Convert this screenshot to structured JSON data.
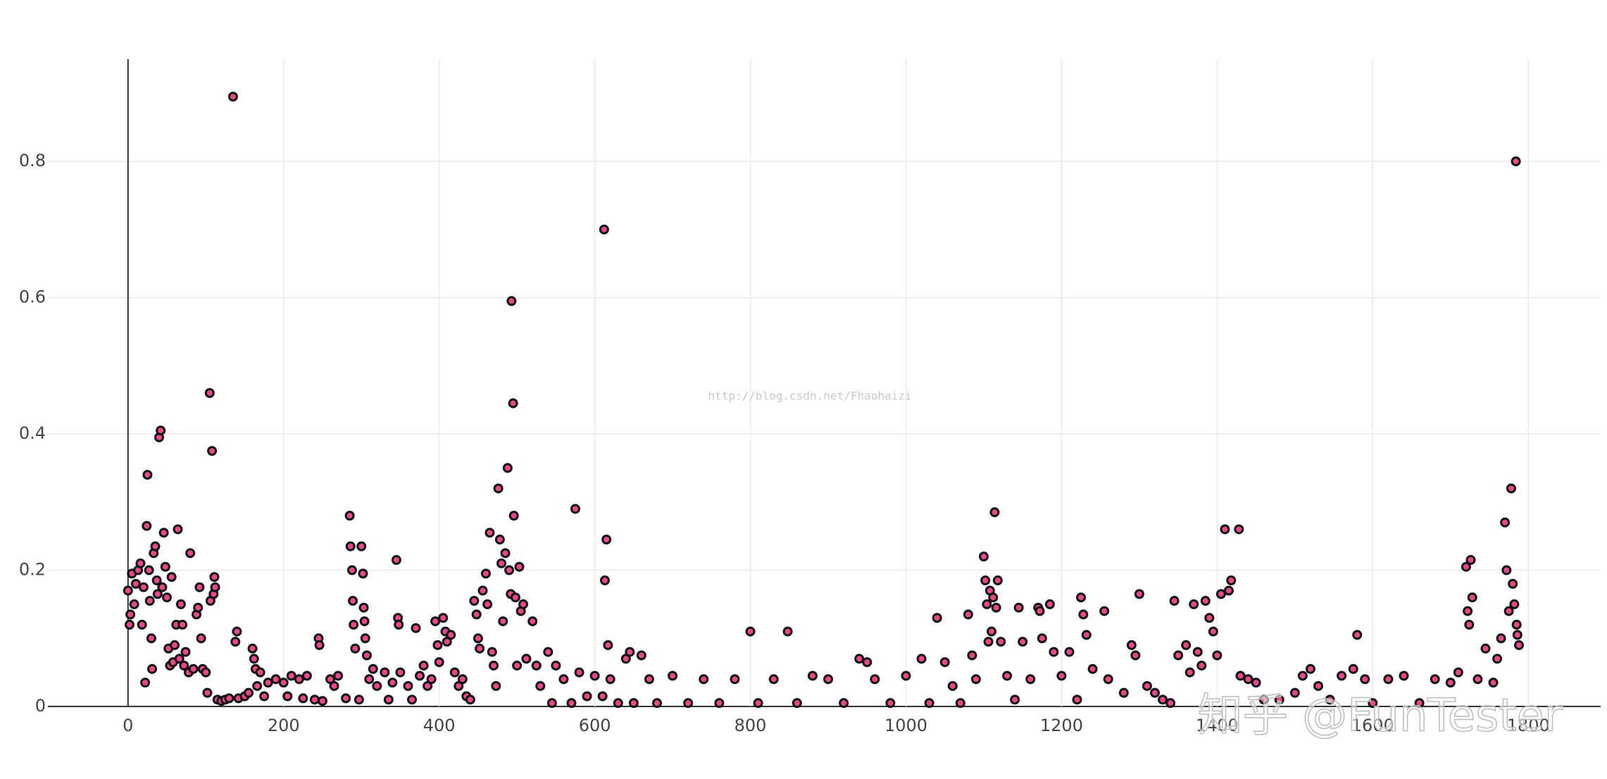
{
  "chart_data": {
    "type": "scatter",
    "annotations": [
      "http://blog.csdn.net/Fhaohaizi",
      "知乎 @FunTester"
    ],
    "color": "#e8478b",
    "edge_color": "#111111",
    "grid": true,
    "xlim": [
      -103,
      1893
    ],
    "ylim": [
      0,
      0.95
    ],
    "xticks": [
      0,
      200,
      400,
      600,
      800,
      1000,
      1200,
      1400,
      1600,
      1800
    ],
    "yticks": [
      0,
      0.2,
      0.4,
      0.6,
      0.8
    ],
    "x": [
      0,
      2,
      3,
      5,
      8,
      10,
      13,
      16,
      18,
      20,
      22,
      24,
      25,
      27,
      28,
      30,
      31,
      33,
      35,
      37,
      38,
      40,
      42,
      44,
      46,
      48,
      50,
      52,
      54,
      56,
      58,
      60,
      62,
      64,
      66,
      68,
      70,
      72,
      74,
      78,
      80,
      84,
      88,
      90,
      92,
      94,
      96,
      100,
      102,
      105,
      106,
      108,
      110,
      111,
      112,
      115,
      120,
      125,
      130,
      135,
      138,
      140,
      142,
      150,
      155,
      160,
      162,
      164,
      166,
      170,
      175,
      180,
      190,
      200,
      205,
      210,
      220,
      225,
      230,
      240,
      245,
      246,
      250,
      260,
      265,
      270,
      280,
      285,
      286,
      288,
      289,
      290,
      292,
      297,
      300,
      302,
      303,
      304,
      305,
      307,
      310,
      315,
      320,
      330,
      335,
      340,
      345,
      347,
      348,
      350,
      360,
      365,
      370,
      375,
      380,
      385,
      390,
      395,
      398,
      400,
      405,
      408,
      410,
      415,
      420,
      425,
      430,
      435,
      440,
      445,
      448,
      450,
      452,
      456,
      460,
      462,
      465,
      468,
      470,
      473,
      476,
      478,
      480,
      482,
      485,
      488,
      490,
      492,
      493,
      495,
      496,
      498,
      500,
      503,
      505,
      508,
      512,
      520,
      525,
      530,
      540,
      545,
      550,
      560,
      570,
      575,
      580,
      590,
      600,
      610,
      612,
      613,
      615,
      617,
      620,
      630,
      640,
      645,
      650,
      660,
      670,
      680,
      700,
      720,
      740,
      760,
      780,
      800,
      810,
      830,
      848,
      860,
      880,
      900,
      920,
      940,
      950,
      960,
      980,
      1000,
      1020,
      1030,
      1040,
      1050,
      1060,
      1070,
      1080,
      1085,
      1090,
      1100,
      1102,
      1104,
      1106,
      1108,
      1110,
      1112,
      1114,
      1116,
      1118,
      1122,
      1130,
      1140,
      1145,
      1150,
      1160,
      1170,
      1172,
      1175,
      1185,
      1190,
      1200,
      1210,
      1220,
      1225,
      1228,
      1232,
      1240,
      1255,
      1260,
      1280,
      1290,
      1295,
      1300,
      1310,
      1320,
      1330,
      1340,
      1345,
      1350,
      1360,
      1365,
      1370,
      1375,
      1380,
      1385,
      1390,
      1395,
      1400,
      1405,
      1410,
      1415,
      1418,
      1428,
      1430,
      1440,
      1450,
      1460,
      1480,
      1500,
      1510,
      1520,
      1530,
      1545,
      1560,
      1575,
      1580,
      1590,
      1600,
      1620,
      1640,
      1660,
      1680,
      1700,
      1710,
      1720,
      1722,
      1724,
      1726,
      1728,
      1735,
      1745,
      1755,
      1760,
      1765,
      1770,
      1772,
      1775,
      1778,
      1780,
      1782,
      1784,
      1785,
      1786,
      1788
    ],
    "values": [
      0.17,
      0.12,
      0.135,
      0.195,
      0.15,
      0.18,
      0.2,
      0.21,
      0.12,
      0.175,
      0.035,
      0.265,
      0.34,
      0.2,
      0.155,
      0.1,
      0.055,
      0.225,
      0.235,
      0.185,
      0.165,
      0.395,
      0.405,
      0.175,
      0.255,
      0.205,
      0.16,
      0.085,
      0.06,
      0.19,
      0.065,
      0.09,
      0.12,
      0.26,
      0.07,
      0.15,
      0.12,
      0.06,
      0.08,
      0.05,
      0.225,
      0.055,
      0.135,
      0.145,
      0.175,
      0.1,
      0.055,
      0.05,
      0.02,
      0.46,
      0.155,
      0.375,
      0.165,
      0.19,
      0.175,
      0.01,
      0.008,
      0.01,
      0.012,
      0.895,
      0.095,
      0.11,
      0.012,
      0.015,
      0.02,
      0.085,
      0.07,
      0.055,
      0.03,
      0.05,
      0.015,
      0.035,
      0.04,
      0.035,
      0.015,
      0.045,
      0.04,
      0.012,
      0.045,
      0.01,
      0.1,
      0.09,
      0.008,
      0.04,
      0.03,
      0.045,
      0.012,
      0.28,
      0.235,
      0.2,
      0.155,
      0.12,
      0.085,
      0.01,
      0.235,
      0.195,
      0.145,
      0.125,
      0.1,
      0.075,
      0.04,
      0.055,
      0.03,
      0.05,
      0.01,
      0.035,
      0.215,
      0.13,
      0.12,
      0.05,
      0.03,
      0.01,
      0.115,
      0.045,
      0.06,
      0.03,
      0.04,
      0.125,
      0.09,
      0.065,
      0.13,
      0.11,
      0.095,
      0.105,
      0.05,
      0.03,
      0.04,
      0.015,
      0.01,
      0.155,
      0.135,
      0.1,
      0.085,
      0.17,
      0.195,
      0.15,
      0.255,
      0.08,
      0.06,
      0.03,
      0.32,
      0.245,
      0.21,
      0.125,
      0.225,
      0.35,
      0.2,
      0.165,
      0.595,
      0.445,
      0.28,
      0.16,
      0.06,
      0.205,
      0.14,
      0.15,
      0.07,
      0.125,
      0.06,
      0.03,
      0.08,
      0.005,
      0.06,
      0.04,
      0.005,
      0.29,
      0.05,
      0.015,
      0.045,
      0.015,
      0.7,
      0.185,
      0.245,
      0.09,
      0.04,
      0.005,
      0.07,
      0.08,
      0.005,
      0.075,
      0.04,
      0.005,
      0.045,
      0.005,
      0.04,
      0.005,
      0.04,
      0.11,
      0.005,
      0.04,
      0.11,
      0.005,
      0.045,
      0.04,
      0.005,
      0.07,
      0.065,
      0.04,
      0.005,
      0.045,
      0.07,
      0.005,
      0.13,
      0.065,
      0.03,
      0.005,
      0.135,
      0.075,
      0.04,
      0.22,
      0.185,
      0.15,
      0.095,
      0.17,
      0.11,
      0.16,
      0.285,
      0.145,
      0.185,
      0.095,
      0.045,
      0.01,
      0.145,
      0.095,
      0.04,
      0.145,
      0.14,
      0.1,
      0.15,
      0.08,
      0.045,
      0.08,
      0.01,
      0.16,
      0.135,
      0.105,
      0.055,
      0.14,
      0.04,
      0.02,
      0.09,
      0.075,
      0.165,
      0.03,
      0.02,
      0.01,
      0.005,
      0.155,
      0.075,
      0.09,
      0.05,
      0.15,
      0.08,
      0.06,
      0.155,
      0.13,
      0.11,
      0.075,
      0.165,
      0.26,
      0.17,
      0.185,
      0.26,
      0.045,
      0.04,
      0.035,
      0.01,
      0.01,
      0.02,
      0.045,
      0.055,
      0.03,
      0.01,
      0.045,
      0.055,
      0.105,
      0.04,
      0.005,
      0.04,
      0.045,
      0.005,
      0.04,
      0.035,
      0.05,
      0.205,
      0.14,
      0.12,
      0.215,
      0.16,
      0.04,
      0.085,
      0.035,
      0.07,
      0.1,
      0.27,
      0.2,
      0.14,
      0.32,
      0.18,
      0.15,
      0.8,
      0.12,
      0.105,
      0.09
    ]
  }
}
